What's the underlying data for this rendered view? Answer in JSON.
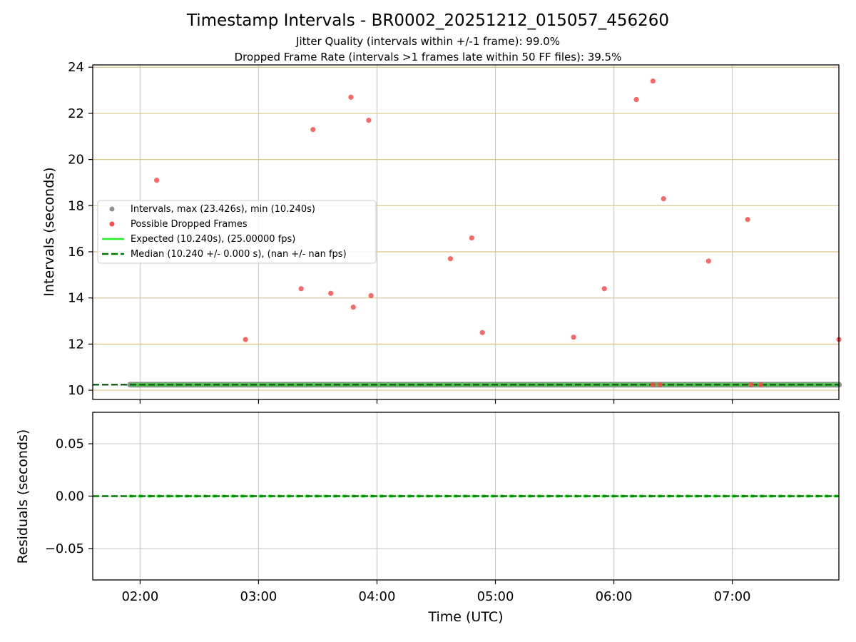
{
  "chart_data": [
    {
      "type": "scatter",
      "title": "Timestamp Intervals - BR0002_20251212_015057_456260",
      "subtitle_1": "Jitter Quality (intervals within +/-1 frame): 99.0%",
      "subtitle_2": "Dropped Frame Rate (intervals >1 frames late within 50 FF files): 39.5%",
      "xlabel": "",
      "ylabel": "Intervals (seconds)",
      "xlim_hours": [
        1.6,
        7.9
      ],
      "ylim": [
        9.6,
        24.1
      ],
      "yticks": [
        10,
        12,
        14,
        16,
        18,
        20,
        22,
        24
      ],
      "ytick_labels": [
        "10",
        "12",
        "14",
        "16",
        "18",
        "20",
        "22",
        "24"
      ],
      "xticks_hours": [
        2,
        3,
        4,
        5,
        6,
        7
      ],
      "legend_position": "center-left",
      "series": [
        {
          "name": "Intervals, max (23.426s), min (10.240s)",
          "color": "#909090",
          "x_range_hours": [
            1.915,
            7.9
          ],
          "y": 10.24
        },
        {
          "name": "Possible Dropped Frames",
          "color": "#f05050",
          "points": [
            [
              2.14,
              19.1
            ],
            [
              2.89,
              12.2
            ],
            [
              3.36,
              14.4
            ],
            [
              3.46,
              21.3
            ],
            [
              3.61,
              14.2
            ],
            [
              3.78,
              22.7
            ],
            [
              3.8,
              13.6
            ],
            [
              3.93,
              21.7
            ],
            [
              3.95,
              14.1
            ],
            [
              4.62,
              15.7
            ],
            [
              4.8,
              16.6
            ],
            [
              4.89,
              12.5
            ],
            [
              5.66,
              12.3
            ],
            [
              5.92,
              14.4
            ],
            [
              6.19,
              22.6
            ],
            [
              6.33,
              23.4
            ],
            [
              6.42,
              18.3
            ],
            [
              6.8,
              15.6
            ],
            [
              7.13,
              17.4
            ],
            [
              7.9,
              12.2
            ],
            [
              6.33,
              10.24
            ],
            [
              6.39,
              10.24
            ],
            [
              7.16,
              10.24
            ],
            [
              7.24,
              10.24
            ]
          ]
        },
        {
          "name": "Expected (10.240s), (25.00000 fps)",
          "color": "#22ee22",
          "y": 10.24
        },
        {
          "name": "Median (10.240 +/- 0.000 s), (nan +/- nan fps)",
          "color": "#007700",
          "y": 10.24
        }
      ],
      "h_grid_color": "#dcc48a",
      "v_grid_color": "#cccccc"
    },
    {
      "type": "line",
      "xlabel": "Time (UTC)",
      "ylabel": "Residuals (seconds)",
      "xlim_hours": [
        1.6,
        7.9
      ],
      "ylim": [
        -0.08,
        0.08
      ],
      "yticks": [
        -0.05,
        0.0,
        0.05
      ],
      "ytick_labels": [
        "−0.05",
        "0.00",
        "0.05"
      ],
      "xticks_hours": [
        2,
        3,
        4,
        5,
        6,
        7
      ],
      "xtick_labels": [
        "02:00",
        "03:00",
        "04:00",
        "05:00",
        "06:00",
        "07:00"
      ],
      "series": [
        {
          "name": "Residuals",
          "color": "#22ee22",
          "y": 0.0
        },
        {
          "name": "Median",
          "color": "#007700",
          "y": 0.0
        }
      ]
    }
  ]
}
